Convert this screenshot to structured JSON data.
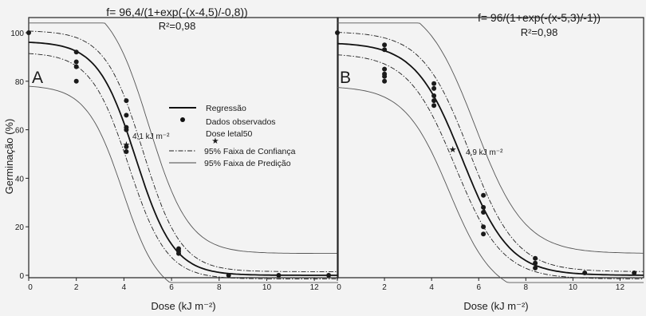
{
  "chart_data": [
    {
      "type": "scatter",
      "panel_label": "A",
      "equation": "f= 96,4/(1+exp(-(x-4,5)/-0,8))",
      "r2": "R²=0,98",
      "xlabel": "Dose (kJ m⁻²)",
      "ylabel": "Germinação (%)",
      "xlim": [
        0,
        13
      ],
      "ylim": [
        0,
        100
      ],
      "xticks": [
        "0",
        "2",
        "4",
        "6",
        "8",
        "10",
        "12"
      ],
      "yticks": [
        "0",
        "20",
        "40",
        "60",
        "80",
        "100"
      ],
      "model": {
        "a": 96.4,
        "x0": 4.5,
        "b": 0.8
      },
      "ld50": {
        "x": 4.1,
        "y": 54,
        "label": "4,1 kJ m⁻²"
      },
      "points": [
        [
          0,
          100
        ],
        [
          2,
          92
        ],
        [
          2,
          88
        ],
        [
          2,
          86
        ],
        [
          2,
          80
        ],
        [
          4.1,
          72
        ],
        [
          4.1,
          66
        ],
        [
          4.1,
          61
        ],
        [
          4.1,
          60
        ],
        [
          4.1,
          53
        ],
        [
          4.1,
          51
        ],
        [
          6.3,
          11
        ],
        [
          6.3,
          10
        ],
        [
          6.3,
          9
        ],
        [
          8.4,
          0
        ],
        [
          10.5,
          0
        ],
        [
          12.6,
          0
        ]
      ],
      "legend": {
        "position": "center-right",
        "items": [
          "Regressão",
          "Dados observados",
          "Dose letal50",
          "95% Faixa de Confiança",
          "95% Faixa de Predição"
        ]
      }
    },
    {
      "type": "scatter",
      "panel_label": "B",
      "equation": "f= 96/(1+exp(-(x-5,3)/-1))",
      "r2": "R²=0,98",
      "xlabel": "Dose (kJ m⁻²)",
      "ylabel": "",
      "xlim": [
        0,
        13
      ],
      "ylim": [
        0,
        100
      ],
      "xticks": [
        "0",
        "2",
        "4",
        "6",
        "8",
        "10",
        "12"
      ],
      "yticks": [],
      "model": {
        "a": 96,
        "x0": 5.3,
        "b": 1
      },
      "ld50": {
        "x": 4.9,
        "y": 52,
        "label": "4,9 kJ m⁻²"
      },
      "points": [
        [
          0,
          100
        ],
        [
          2,
          95
        ],
        [
          2,
          93
        ],
        [
          2,
          85
        ],
        [
          2,
          83
        ],
        [
          2,
          82
        ],
        [
          2,
          80
        ],
        [
          4.1,
          79
        ],
        [
          4.1,
          77
        ],
        [
          4.1,
          74
        ],
        [
          4.1,
          72
        ],
        [
          4.1,
          70
        ],
        [
          6.2,
          33
        ],
        [
          6.2,
          28
        ],
        [
          6.2,
          26
        ],
        [
          6.2,
          20
        ],
        [
          6.2,
          17
        ],
        [
          8.4,
          7
        ],
        [
          8.4,
          5
        ],
        [
          8.4,
          3
        ],
        [
          10.5,
          1
        ],
        [
          12.6,
          1
        ]
      ]
    }
  ]
}
